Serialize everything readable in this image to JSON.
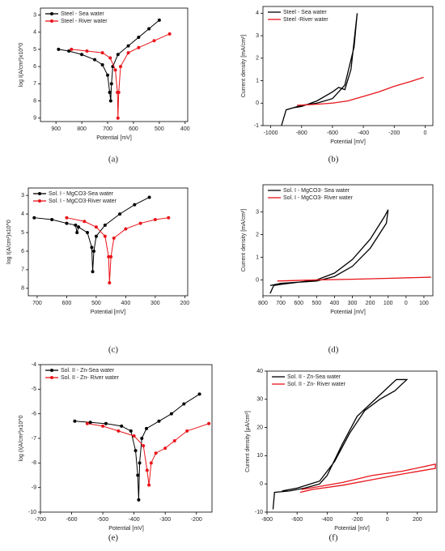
{
  "chart_data": [
    {
      "type": "line",
      "caption": "(a)",
      "xlabel": "Potential [mV]",
      "ylabel": "log I(A/cm²)x10^0",
      "xlim": [
        960,
        390
      ],
      "xticks": [
        900,
        800,
        700,
        600,
        500,
        400
      ],
      "ylim": [
        9.2,
        2.6
      ],
      "yticks": [
        3,
        4,
        5,
        6,
        7,
        8,
        9
      ],
      "markers": true,
      "legend": "upper left",
      "series": [
        {
          "name": "Steel - Sea water",
          "color": "#000000",
          "x": [
            890,
            850,
            800,
            750,
            720,
            700,
            692,
            688,
            685,
            680,
            660,
            620,
            580,
            540,
            500
          ],
          "values": [
            5.0,
            5.1,
            5.3,
            5.6,
            5.9,
            6.5,
            7.5,
            8.0,
            7.0,
            6.0,
            5.3,
            4.8,
            4.3,
            3.8,
            3.3
          ]
        },
        {
          "name": "Steel - River water",
          "color": "#e8141a",
          "x": [
            840,
            780,
            720,
            690,
            670,
            662,
            660,
            657,
            650,
            620,
            580,
            520,
            460
          ],
          "values": [
            5.0,
            5.1,
            5.2,
            5.5,
            6.2,
            7.5,
            9.0,
            7.5,
            6.0,
            5.2,
            4.9,
            4.5,
            4.1
          ]
        }
      ]
    },
    {
      "type": "line",
      "caption": "(b)",
      "xlabel": "Potential [mV]",
      "ylabel": "Current density [mA/cm²]",
      "xlim": [
        -1050,
        50
      ],
      "xticks": [
        -1000,
        -800,
        -600,
        -400,
        -200,
        0
      ],
      "ylim": [
        -1,
        4.3
      ],
      "yticks": [
        -1,
        0,
        1,
        2,
        3,
        4
      ],
      "markers": false,
      "legend": "upper left",
      "series": [
        {
          "name": "Steel  - Sea water",
          "color": "#000000",
          "x": [
            -900,
            -850,
            -800,
            -700,
            -600,
            -560,
            -520,
            -480,
            -440,
            -460,
            -520,
            -600,
            -700,
            -800,
            -900,
            -930
          ],
          "values": [
            -0.3,
            -0.2,
            -0.15,
            0.1,
            0.5,
            0.7,
            0.6,
            1.5,
            4.0,
            2.5,
            0.8,
            0.2,
            0,
            -0.1,
            -0.3,
            -1.0
          ]
        },
        {
          "name": "Steel -River water",
          "color": "#e8141a",
          "x": [
            -830,
            -700,
            -600,
            -500,
            -400,
            -300,
            -200,
            -100,
            -10
          ],
          "values": [
            -0.1,
            -0.05,
            0,
            0.1,
            0.3,
            0.5,
            0.75,
            0.95,
            1.15
          ]
        }
      ]
    },
    {
      "type": "line",
      "caption": "(c)",
      "xlabel": "Potential [mV]",
      "ylabel": "log I(A/cm²)x10^0",
      "xlim": [
        730,
        190
      ],
      "xticks": [
        700,
        600,
        500,
        400,
        300,
        200
      ],
      "ylim": [
        8.4,
        2.6
      ],
      "yticks": [
        3,
        4,
        5,
        6,
        7,
        8
      ],
      "markers": true,
      "legend": "upper left",
      "series": [
        {
          "name": "Sol. I - MgCO3-Sea water",
          "color": "#000000",
          "x": [
            710,
            650,
            600,
            570,
            565,
            560,
            530,
            515,
            512,
            508,
            500,
            470,
            420,
            370,
            320
          ],
          "values": [
            4.2,
            4.3,
            4.5,
            4.6,
            5.0,
            4.7,
            5.0,
            5.8,
            7.1,
            6.0,
            5.2,
            4.6,
            4.0,
            3.5,
            3.1
          ]
        },
        {
          "name": "Sol. I - MgCO3-River water",
          "color": "#e8141a",
          "x": [
            600,
            540,
            500,
            470,
            458,
            455,
            450,
            440,
            400,
            350,
            300,
            255
          ],
          "values": [
            4.2,
            4.4,
            4.7,
            5.2,
            6.3,
            7.7,
            6.3,
            5.3,
            4.8,
            4.5,
            4.3,
            4.2
          ]
        }
      ]
    },
    {
      "type": "line",
      "caption": "(d)",
      "xlabel": "Potential [mV]",
      "ylabel": "Current density [mA/cm²]",
      "xlim": [
        800,
        -150
      ],
      "xticks": [
        800,
        700,
        600,
        500,
        400,
        300,
        200,
        100,
        0,
        {
          "value": -100,
          "label": "100"
        }
      ],
      "ylim": [
        -0.7,
        4.2
      ],
      "yticks": [
        0,
        1,
        2,
        3
      ],
      "markers": false,
      "legend": "upper left",
      "series": [
        {
          "name": "Sol. I - MgCO3- Sea water",
          "color": "#000000",
          "x": [
            760,
            740,
            700,
            600,
            500,
            400,
            300,
            200,
            120,
            100,
            110,
            200,
            300,
            400,
            500,
            700,
            760
          ],
          "values": [
            -0.6,
            -0.25,
            -0.2,
            -0.1,
            0,
            0.3,
            0.9,
            1.8,
            2.8,
            3.1,
            2.5,
            1.4,
            0.6,
            0.15,
            -0.05,
            -0.15,
            -0.25
          ]
        },
        {
          "name": "Sol. I - MgCO3- River water",
          "color": "#e8141a",
          "x": [
            720,
            500,
            300,
            100,
            -140
          ],
          "values": [
            -0.05,
            0,
            0.03,
            0.07,
            0.12
          ]
        }
      ]
    },
    {
      "type": "line",
      "caption": "(e)",
      "xlabel": "Potential [mV]",
      "ylabel": "log (I(A/cm²)x10^0",
      "xlim": [
        -700,
        -150
      ],
      "xticks": [
        -700,
        -600,
        -500,
        -400,
        -300,
        -200
      ],
      "ylim": [
        -10,
        -4
      ],
      "yticks": [
        -10,
        -9,
        -8,
        -7,
        -6,
        -5,
        -4
      ],
      "markers": true,
      "legend": "upper left",
      "series": [
        {
          "name": "Sol. II - Zn-Sea water",
          "color": "#000000",
          "x": [
            -590,
            -540,
            -490,
            -440,
            -410,
            -395,
            -388,
            -385,
            -382,
            -375,
            -360,
            -320,
            -280,
            -240,
            -190
          ],
          "values": [
            -6.3,
            -6.35,
            -6.4,
            -6.5,
            -6.7,
            -7.5,
            -8.5,
            -9.5,
            -8.0,
            -7.0,
            -6.6,
            -6.3,
            -6.0,
            -5.6,
            -5.2
          ]
        },
        {
          "name": "Sol. II - Zn- River water",
          "color": "#e8141a",
          "x": [
            -550,
            -500,
            -450,
            -400,
            -370,
            -358,
            -352,
            -345,
            -330,
            -300,
            -270,
            -230,
            -160
          ],
          "values": [
            -6.4,
            -6.5,
            -6.7,
            -6.9,
            -7.3,
            -8.3,
            -8.9,
            -8.0,
            -7.6,
            -7.4,
            -7.1,
            -6.7,
            -6.4
          ]
        }
      ]
    },
    {
      "type": "line",
      "caption": "(f)",
      "xlabel": "Potential [mV]",
      "ylabel": "Current density [µA/cm²]",
      "xlim": [
        -800,
        330
      ],
      "xticks": [
        -800,
        -600,
        -400,
        -200,
        0,
        200
      ],
      "ylim": [
        -10,
        40
      ],
      "yticks": [
        -10,
        0,
        10,
        20,
        30,
        40
      ],
      "markers": false,
      "legend": "upper left",
      "series": [
        {
          "name": "Sol. II - Zn-Sea water",
          "color": "#000000",
          "x": [
            -760,
            -750,
            -650,
            -550,
            -450,
            -400,
            -300,
            -200,
            -100,
            0,
            60,
            130,
            50,
            -50,
            -150,
            -250,
            -350,
            -450,
            -600,
            -700
          ],
          "values": [
            -9,
            -3,
            -2.5,
            -1.5,
            0,
            3,
            14,
            24,
            29,
            34,
            37,
            37,
            33,
            30,
            26,
            18,
            8,
            1,
            -1.5,
            -2.5
          ]
        },
        {
          "name": "Sol. II - Zn- River water",
          "color": "#e8141a",
          "x": [
            -580,
            -500,
            -300,
            -100,
            100,
            320,
            320,
            100,
            -100,
            -300,
            -570
          ],
          "values": [
            -3,
            -2,
            -0.5,
            1.5,
            3.5,
            5.5,
            7,
            4.5,
            3,
            0.5,
            -2
          ]
        }
      ]
    }
  ]
}
